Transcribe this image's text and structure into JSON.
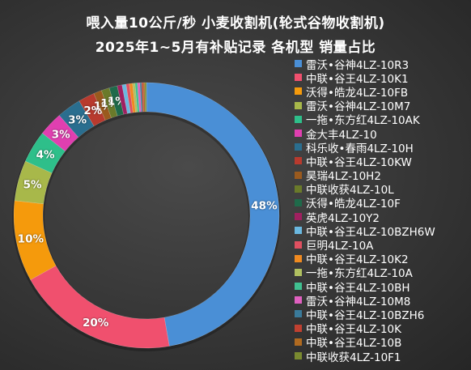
{
  "title_line1": "喂入量10公斤/秒  小麦收割机(轮式谷物收割机)",
  "title_line2": "2025年1~5月有补贴记录  各机型  销量占比",
  "chart_data": {
    "type": "pie",
    "title": "喂入量10公斤/秒  小麦收割机(轮式谷物收割机) 2025年1~5月有补贴记录 各机型 销量占比",
    "legend_position": "right",
    "slices": [
      {
        "name": "雷沃•谷神4LZ-10R3",
        "value": 48,
        "label": "48%",
        "color": "#4a8fd6"
      },
      {
        "name": "中联•谷王4LZ-10K1",
        "value": 20,
        "label": "20%",
        "color": "#f0506e"
      },
      {
        "name": "沃得•皓龙4LZ-10FB",
        "value": 10,
        "label": "10%",
        "color": "#f59a0c"
      },
      {
        "name": "雷沃•谷神4LZ-10M7",
        "value": 5,
        "label": "5%",
        "color": "#a8b84a"
      },
      {
        "name": "一拖•东方红4LZ-10AK",
        "value": 4,
        "label": "4%",
        "color": "#2ebf8a"
      },
      {
        "name": "金大丰4LZ-10",
        "value": 3,
        "label": "3%",
        "color": "#e03fb0"
      },
      {
        "name": "科乐收•春雨4LZ-10H",
        "value": 3,
        "label": "3%",
        "color": "#2a6e8f"
      },
      {
        "name": "中联•谷王4LZ-10KW",
        "value": 2,
        "label": "2%",
        "color": "#b83a2e"
      },
      {
        "name": "昊瑞4LZ-10H2",
        "value": 1,
        "label": "1%",
        "color": "#9a5a1e"
      },
      {
        "name": "中联收获4LZ-10L",
        "value": 1,
        "label": "1%",
        "color": "#6a7a2a"
      },
      {
        "name": "沃得•皓龙4LZ-10F",
        "value": 1,
        "label": "1%",
        "color": "#1f6a4a"
      },
      {
        "name": "英虎4LZ-10Y2",
        "value": 0.6,
        "label": "",
        "color": "#a02060"
      },
      {
        "name": "中联•谷王4LZ-10BZH6W",
        "value": 0.5,
        "label": "",
        "color": "#6ab8e0"
      },
      {
        "name": "巨明4LZ-10A",
        "value": 0.4,
        "label": "",
        "color": "#e05060"
      },
      {
        "name": "中联•谷王4LZ-10K2",
        "value": 0.4,
        "label": "",
        "color": "#f08a20"
      },
      {
        "name": "一拖•东方红4LZ-10A",
        "value": 0.3,
        "label": "",
        "color": "#b0c060"
      },
      {
        "name": "中联•谷王4LZ-10BH",
        "value": 0.3,
        "label": "",
        "color": "#40c090"
      },
      {
        "name": "雷沃•谷神4LZ-10M8",
        "value": 0.3,
        "label": "",
        "color": "#e060c0"
      },
      {
        "name": "中联•谷王4LZ-10BZH6",
        "value": 0.2,
        "label": "",
        "color": "#3a7a9a"
      },
      {
        "name": "中联•谷王4LZ-10K",
        "value": 0.2,
        "label": "",
        "color": "#c04030"
      },
      {
        "name": "中联•谷王4LZ-10B",
        "value": 0.2,
        "label": "",
        "color": "#b06a20"
      },
      {
        "name": "中联收获4LZ-10F1",
        "value": 0.2,
        "label": "",
        "color": "#7a8a30"
      }
    ]
  }
}
